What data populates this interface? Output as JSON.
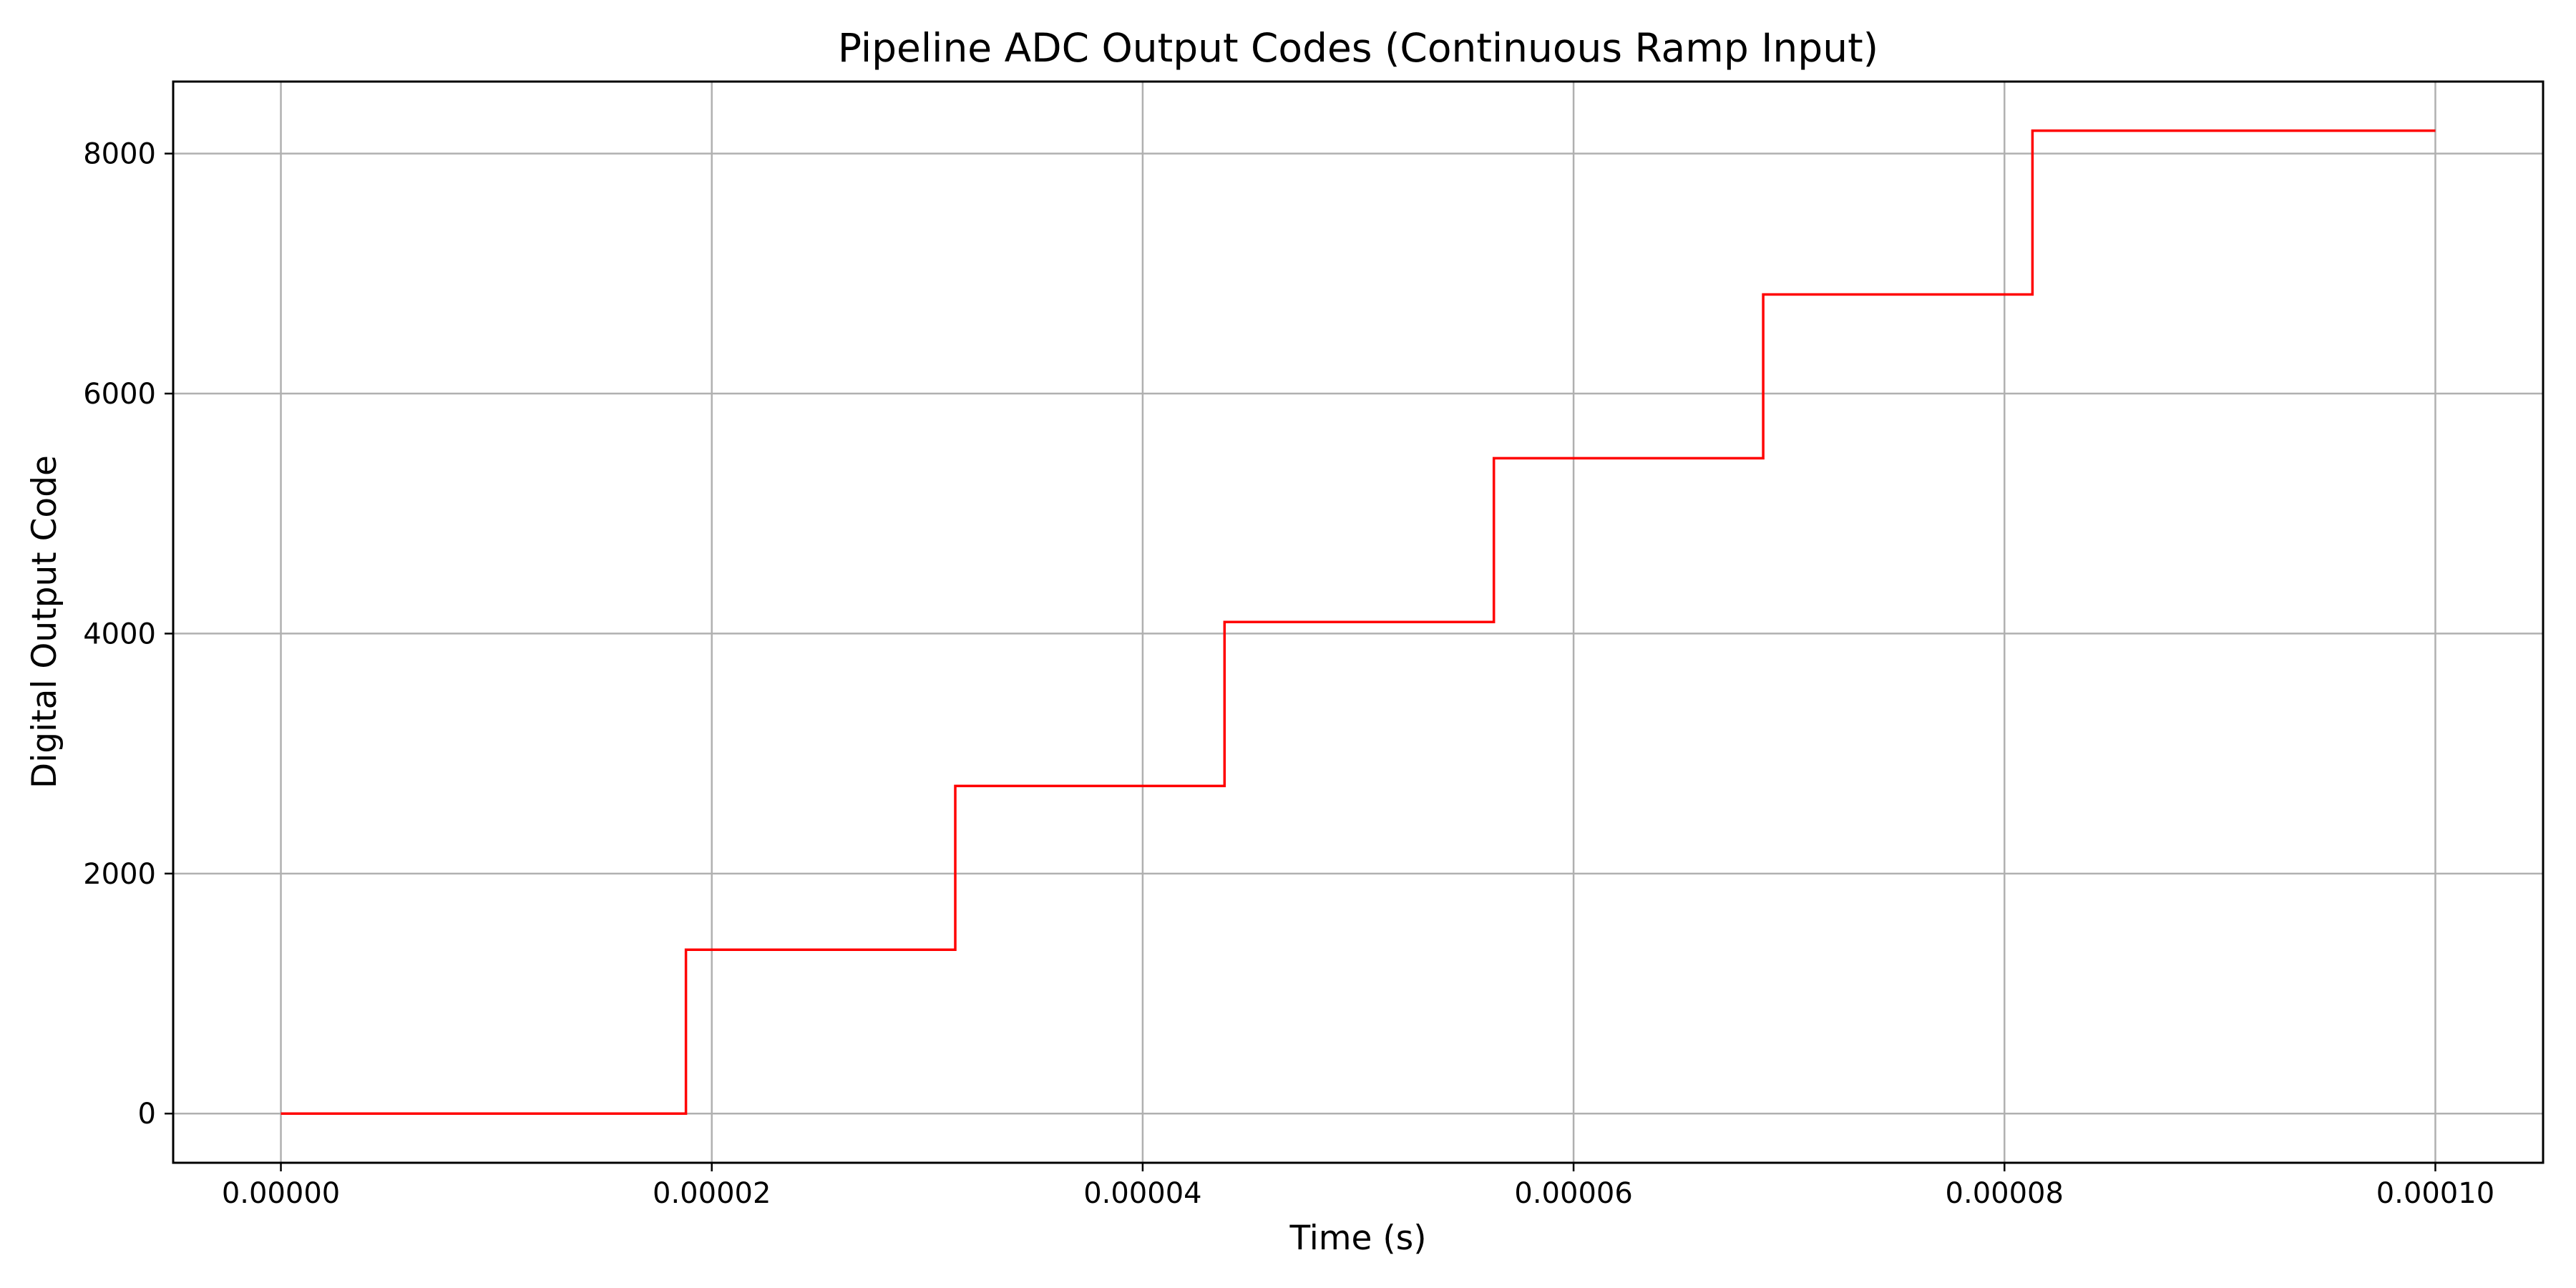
{
  "chart_data": {
    "type": "line",
    "drawstyle": "steps-post",
    "title": "Pipeline ADC Output Codes (Continuous Ramp Input)",
    "xlabel": "Time (s)",
    "ylabel": "Digital Output Code",
    "xlim": [
      -5e-06,
      0.000105
    ],
    "ylim": [
      -410,
      8600
    ],
    "grid": true,
    "xticks": [
      0,
      2e-05,
      4e-05,
      6e-05,
      8e-05,
      0.0001
    ],
    "xtick_labels": [
      "0.00000",
      "0.00002",
      "0.00004",
      "0.00006",
      "0.00008",
      "0.00010"
    ],
    "yticks": [
      0,
      2000,
      4000,
      6000,
      8000
    ],
    "ytick_labels": [
      "0",
      "2000",
      "4000",
      "6000",
      "8000"
    ],
    "series": [
      {
        "color": "#ff0000",
        "x": [
          0,
          1.88e-05,
          3.13e-05,
          4.38e-05,
          5.63e-05,
          6.88e-05,
          8.13e-05,
          0.0001
        ],
        "y": [
          0,
          1365,
          2730,
          4096,
          5461,
          6826,
          8191,
          8191
        ]
      }
    ]
  }
}
